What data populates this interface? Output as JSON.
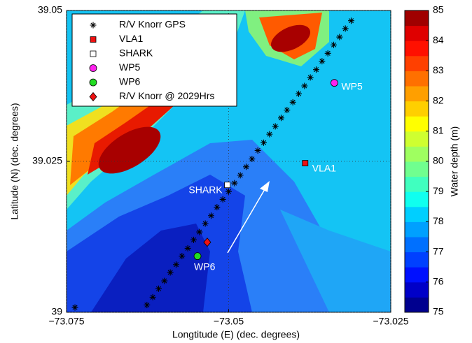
{
  "chart_data": {
    "type": "scatter",
    "x_label": "Longtitude (E) (dec. degrees)",
    "y_label": "Latitude (N) (dec. degrees)",
    "xlim": [
      -73.075,
      -73.025
    ],
    "ylim": [
      39,
      39.05
    ],
    "xticks": [
      {
        "value": -73.075,
        "label": "−73.075"
      },
      {
        "value": -73.05,
        "label": "−73.05"
      },
      {
        "value": -73.025,
        "label": "−73.025"
      }
    ],
    "yticks": [
      39,
      39.025,
      39.05
    ],
    "grid": true,
    "legend": "upper left",
    "colorbar": {
      "label": "Water depth (m)",
      "clim": [
        75,
        85
      ],
      "ticks": [
        75,
        76,
        77,
        78,
        79,
        80,
        81,
        82,
        83,
        84,
        85
      ],
      "colormap": [
        "#00008f",
        "#0000c8",
        "#0010ff",
        "#0040ff",
        "#0070ff",
        "#00a0ff",
        "#00cfff",
        "#10ffef",
        "#40ffbf",
        "#70ff8f",
        "#9fff60",
        "#cfff30",
        "#ffff00",
        "#ffcf00",
        "#ff9f00",
        "#ff7000",
        "#ff4000",
        "#ff1000",
        "#df0000",
        "#a00000"
      ]
    },
    "series": [
      {
        "name": "R/V Knorr GPS",
        "color": "#000000",
        "marker": "asterisk",
        "x": [
          -73.0737,
          -73.0626,
          -73.0617,
          -73.0608,
          -73.0599,
          -73.059,
          -73.0581,
          -73.0572,
          -73.0563,
          -73.0554,
          -73.0545,
          -73.0536,
          -73.0527,
          -73.0518,
          -73.0509,
          -73.05,
          -73.0491,
          -73.0482,
          -73.0473,
          -73.0464,
          -73.0455,
          -73.0446,
          -73.0437,
          -73.0428,
          -73.0419,
          -73.041,
          -73.0401,
          -73.0392,
          -73.0383,
          -73.0374,
          -73.0365,
          -73.0356,
          -73.0347,
          -73.0338,
          -73.0329,
          -73.032,
          -73.0311
        ],
        "values": [
          39.0008,
          39.0012,
          39.0025,
          39.0039,
          39.0052,
          39.0066,
          39.0079,
          39.0093,
          39.0106,
          39.012,
          39.0133,
          39.0147,
          39.016,
          39.0174,
          39.0187,
          39.02,
          39.0214,
          39.0227,
          39.0241,
          39.0254,
          39.0268,
          39.0281,
          39.0295,
          39.0308,
          39.0322,
          39.0335,
          39.0348,
          39.0362,
          39.0375,
          39.0389,
          39.0402,
          39.0416,
          39.0429,
          39.0443,
          39.0456,
          39.047,
          39.0483
        ]
      },
      {
        "name": "VLA1",
        "color": "#ee1111",
        "marker": "square",
        "x": [
          -73.0382
        ],
        "values": [
          39.0247
        ]
      },
      {
        "name": "SHARK",
        "color": "#ffffff",
        "marker": "square",
        "x": [
          -73.0502
        ],
        "values": [
          39.0211
        ]
      },
      {
        "name": "WP5",
        "color": "#ff22ee",
        "marker": "circle",
        "x": [
          -73.0337
        ],
        "values": [
          39.038
        ]
      },
      {
        "name": "WP6",
        "color": "#22dd22",
        "marker": "circle",
        "x": [
          -73.0548
        ],
        "values": [
          39.0093
        ]
      },
      {
        "name": "R/V Knorr @ 2029Hrs",
        "color": "#ee1111",
        "marker": "diamond",
        "x": [
          -73.0533
        ],
        "values": [
          39.0116
        ]
      }
    ]
  }
}
